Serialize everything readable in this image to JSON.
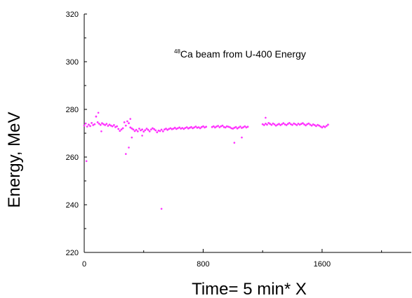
{
  "chart_data": {
    "type": "scatter",
    "title": "",
    "annotation": {
      "superscript": "48",
      "text": "Ca beam from U-400 Energy"
    },
    "xlabel": "Time= 5 min* X",
    "ylabel": "Energy, MeV",
    "xlim": [
      0,
      2200
    ],
    "ylim": [
      220,
      320
    ],
    "x_ticks": [
      0,
      800,
      1600
    ],
    "y_ticks": [
      220,
      240,
      260,
      280,
      300,
      320
    ],
    "x_tick_labels": [
      "0",
      "800",
      "1600"
    ],
    "y_tick_labels": [
      "220",
      "240",
      "260",
      "280",
      "300",
      "320"
    ],
    "grid": false,
    "series": [
      {
        "color": "#ff33ff",
        "segments": [
          {
            "x": [
              0,
              10,
              20,
              30,
              40,
              50,
              60,
              70,
              80,
              90,
              100,
              110,
              120,
              130,
              140,
              150,
              160,
              170,
              180,
              190,
              200,
              210,
              220,
              230,
              240,
              250,
              260,
              270,
              280,
              290,
              300,
              310,
              320,
              330,
              340,
              350,
              360,
              370,
              380,
              390,
              400,
              410,
              420,
              430,
              440,
              450,
              460,
              470,
              480,
              490,
              500,
              510,
              520,
              530,
              540,
              550,
              560,
              570,
              580,
              590,
              600,
              610,
              620,
              630,
              640,
              650,
              660,
              670,
              680,
              690,
              700,
              710,
              720,
              730,
              740,
              750,
              760,
              770,
              780,
              790,
              800,
              810,
              820
            ],
            "y": [
              273.2,
              274.1,
              272.8,
              273.6,
              273.0,
              274.3,
              273.4,
              273.8,
              277.0,
              274.6,
              274.0,
              273.5,
              274.2,
              273.8,
              273.4,
              273.9,
              273.1,
              273.6,
              273.2,
              272.9,
              273.4,
              272.6,
              272.9,
              271.8,
              271.0,
              271.6,
              272.1,
              274.6,
              273.2,
              275.0,
              274.2,
              272.4,
              272.0,
              271.6,
              270.9,
              271.4,
              270.8,
              271.9,
              271.2,
              271.6,
              270.7,
              271.3,
              271.9,
              271.4,
              270.8,
              271.6,
              272.1,
              271.7,
              271.2,
              270.4,
              271.1,
              270.9,
              271.5,
              270.8,
              271.6,
              271.9,
              271.4,
              271.8,
              272.1,
              271.7,
              271.9,
              272.3,
              271.8,
              272.1,
              272.4,
              271.9,
              272.2,
              271.8,
              272.2,
              272.5,
              272.0,
              272.3,
              272.6,
              272.1,
              272.4,
              272.8,
              272.3,
              272.5,
              272.1,
              272.6,
              272.9,
              272.4,
              272.7
            ]
          },
          {
            "x": [
              860,
              870,
              880,
              890,
              900,
              910,
              920,
              930,
              940,
              950,
              960,
              970,
              980,
              990,
              1000,
              1010,
              1020,
              1030,
              1040,
              1050,
              1060,
              1070,
              1080,
              1090,
              1100
            ],
            "y": [
              272.6,
              272.9,
              272.4,
              272.8,
              273.1,
              272.5,
              272.9,
              273.2,
              272.6,
              272.4,
              272.9,
              272.7,
              272.5,
              272.1,
              271.9,
              272.3,
              272.6,
              272.0,
              272.4,
              272.8,
              272.2,
              272.5,
              272.9,
              272.4,
              272.7
            ]
          },
          {
            "x": [
              1200,
              1210,
              1220,
              1230,
              1240,
              1250,
              1260,
              1270,
              1280,
              1290,
              1300,
              1310,
              1320,
              1330,
              1340,
              1350,
              1360,
              1370,
              1380,
              1390,
              1400,
              1410,
              1420,
              1430,
              1440,
              1450,
              1460,
              1470,
              1480,
              1490,
              1500,
              1510,
              1520,
              1530,
              1540,
              1550,
              1560,
              1570,
              1580,
              1590,
              1600,
              1610,
              1620,
              1630,
              1640
            ],
            "y": [
              273.8,
              273.4,
              274.0,
              273.6,
              274.3,
              273.9,
              273.5,
              274.1,
              273.7,
              273.2,
              273.6,
              273.9,
              273.4,
              273.8,
              274.2,
              273.7,
              273.4,
              273.9,
              274.3,
              273.8,
              273.5,
              274.1,
              273.8,
              273.4,
              274.0,
              273.6,
              273.9,
              274.2,
              273.7,
              273.3,
              273.8,
              274.1,
              273.6,
              273.2,
              273.7,
              273.4,
              273.0,
              273.5,
              273.2,
              272.8,
              272.4,
              272.9,
              272.6,
              273.1,
              273.6
            ]
          }
        ],
        "outliers": {
          "x": [
            15,
            95,
            115,
            280,
            300,
            310,
            320,
            390,
            520,
            1010,
            1060,
            1220
          ],
          "y": [
            258.3,
            278.6,
            270.8,
            261.3,
            264.0,
            276.0,
            268.2,
            269.0,
            238.3,
            266.0,
            268.2,
            276.5
          ]
        }
      }
    ]
  }
}
